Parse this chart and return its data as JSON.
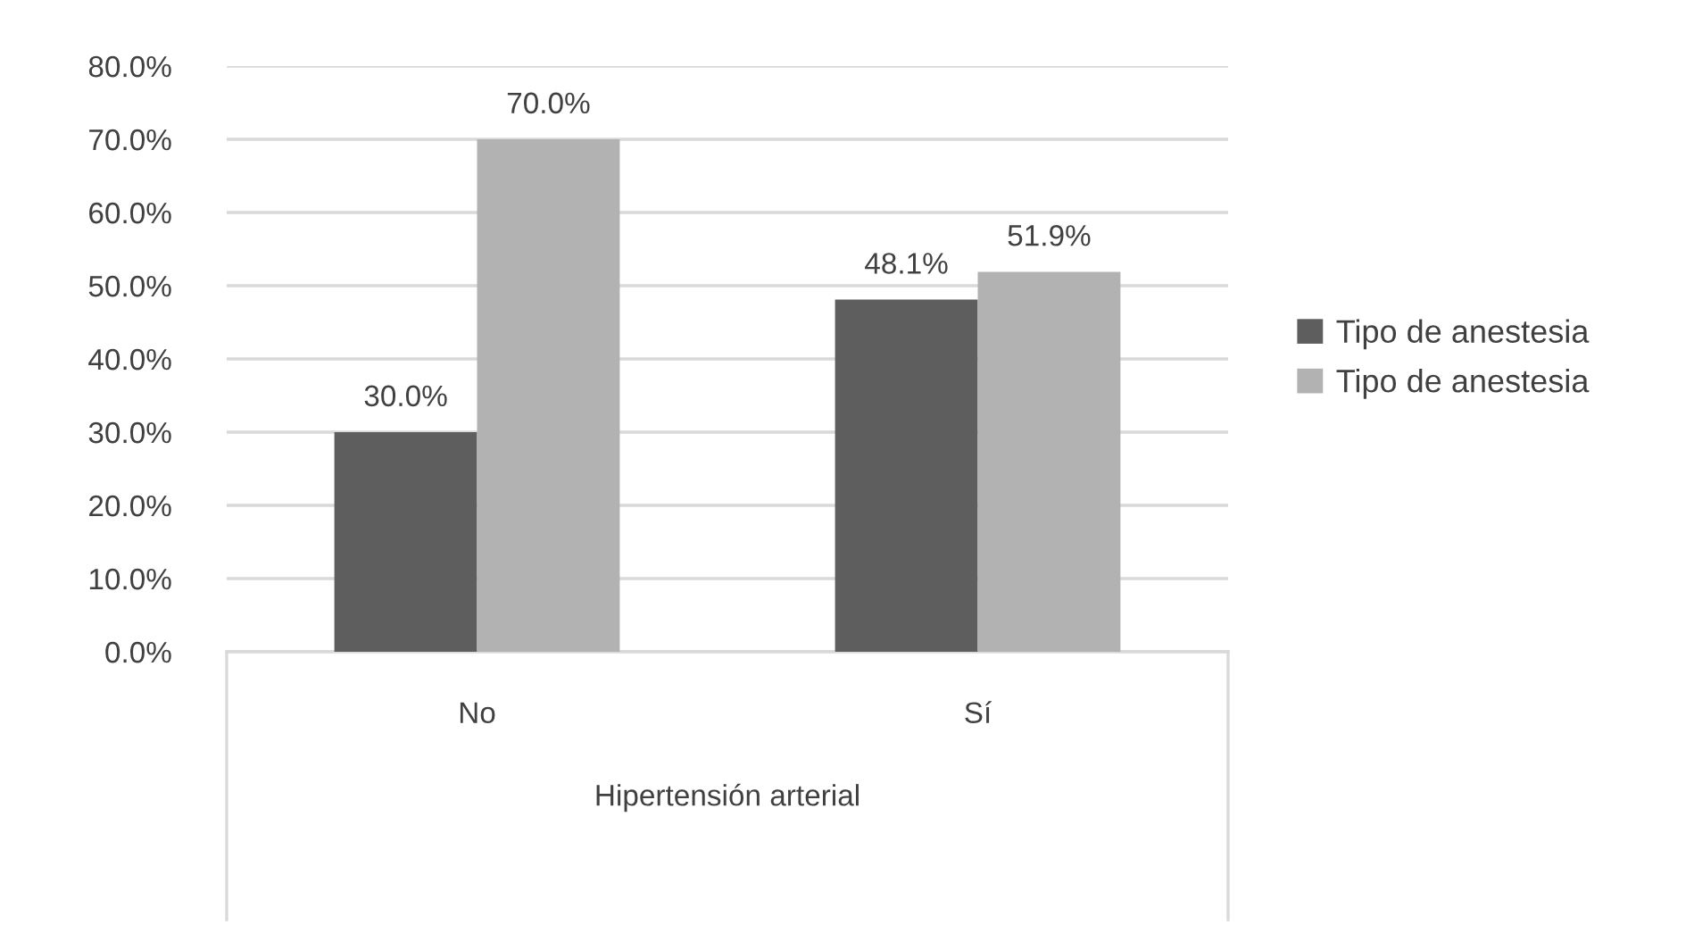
{
  "chart_data": {
    "type": "bar",
    "categories": [
      "No",
      "Sí"
    ],
    "series": [
      {
        "name": "Tipo de anestesia",
        "color": "#5e5e5e",
        "values": [
          30.0,
          48.1
        ],
        "value_labels": [
          "30.0%",
          "48.1%"
        ]
      },
      {
        "name": "Tipo de anestesia",
        "color": "#b2b2b2",
        "values": [
          70.0,
          51.9
        ],
        "value_labels": [
          "70.0%",
          "51.9%"
        ]
      }
    ],
    "xlabel": "Hipertensión arterial",
    "ylim": [
      0,
      80
    ],
    "yticks": [
      {
        "value": 0,
        "label": "0.0%"
      },
      {
        "value": 10,
        "label": "10.0%"
      },
      {
        "value": 20,
        "label": "20.0%"
      },
      {
        "value": 30,
        "label": "30.0%"
      },
      {
        "value": 40,
        "label": "40.0%"
      },
      {
        "value": 50,
        "label": "50.0%"
      },
      {
        "value": 60,
        "label": "60.0%"
      },
      {
        "value": 70,
        "label": "70.0%"
      },
      {
        "value": 80,
        "label": "80.0%"
      }
    ],
    "grid": "y",
    "legend": "right"
  }
}
